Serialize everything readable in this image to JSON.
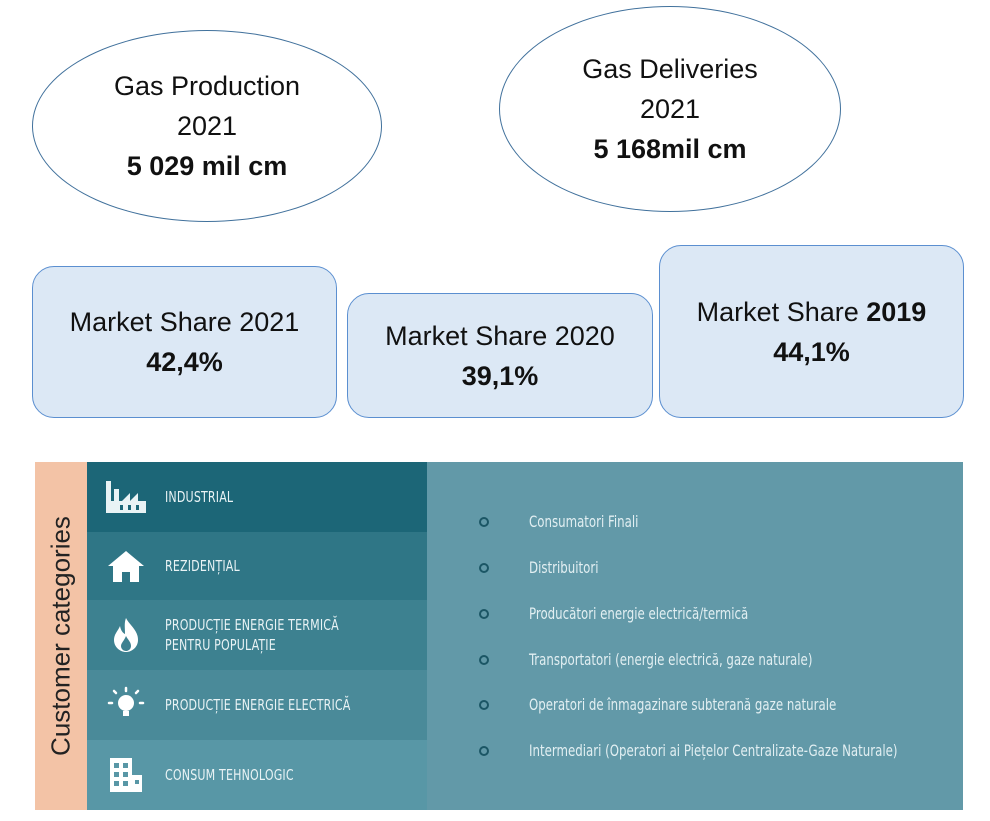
{
  "gas_production": {
    "line1": "Gas Production",
    "line2": "2021",
    "value": "5 029 mil cm"
  },
  "gas_deliveries": {
    "line1": "Gas Deliveries",
    "line2": "2021",
    "value": "5 168mil cm"
  },
  "market_share": [
    {
      "label": "Market Share 2021",
      "value": "42,4%"
    },
    {
      "label": "Market Share 2020",
      "value": "39,1%"
    },
    {
      "label_prefix": "Market Share ",
      "label_year": "2019",
      "value": "44,1%"
    }
  ],
  "customer_categories": {
    "title": "Customer categories",
    "categories": [
      {
        "icon": "factory-icon",
        "line1": "INDUSTRIAL",
        "line2": ""
      },
      {
        "icon": "house-icon",
        "line1": "REZIDENȚIAL",
        "line2": ""
      },
      {
        "icon": "flame-icon",
        "line1": "PRODUCȚIE ENERGIE TERMICĂ",
        "line2": "PENTRU POPULAȚIE"
      },
      {
        "icon": "lightbulb-icon",
        "line1": "PRODUCȚIE ENERGIE ELECTRICĂ",
        "line2": ""
      },
      {
        "icon": "building-icon",
        "line1": "CONSUM TEHNOLOGIC",
        "line2": ""
      }
    ],
    "bullets": [
      "Consumatori Finali",
      "Distribuitori",
      "Producători energie electrică/termică",
      "Transportatori (energie electrică, gaze naturale)",
      "Operatori de înmagazinare subterană gaze naturale",
      "Intermediari (Operatori ai Piețelor Centralizate-Gaze Naturale)"
    ],
    "colors": {
      "panel_bg": "#6299a8",
      "label_bg": "#f3c3a6",
      "row_dark": "#1c6677"
    }
  }
}
